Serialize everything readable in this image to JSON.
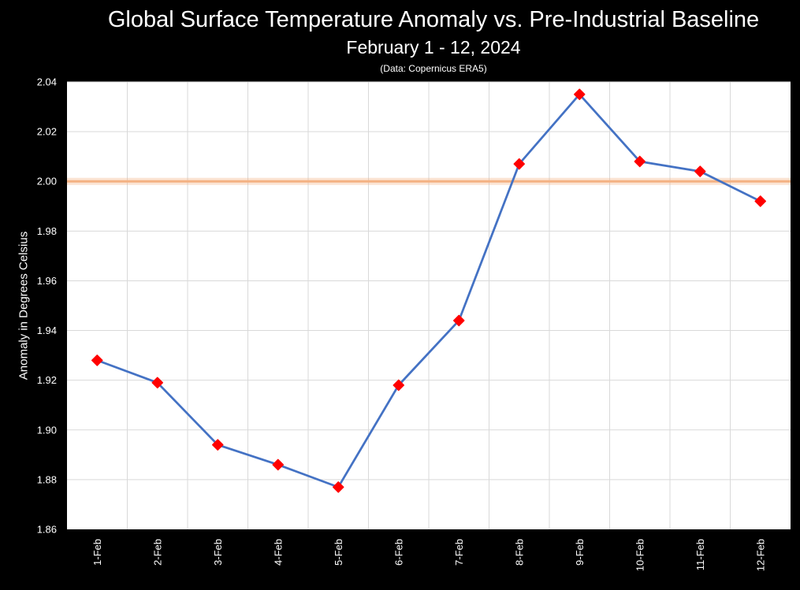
{
  "chart_data": {
    "type": "line",
    "title": "Global Surface Temperature Anomaly vs. Pre-Industrial Baseline",
    "subtitle": "February 1 - 12, 2024",
    "source": "(Data: Copernicus ERA5)",
    "ylabel": "Anomaly in Degrees Celsius",
    "xlabel": "",
    "categories": [
      "1-Feb",
      "2-Feb",
      "3-Feb",
      "4-Feb",
      "5-Feb",
      "6-Feb",
      "7-Feb",
      "8-Feb",
      "9-Feb",
      "10-Feb",
      "11-Feb",
      "12-Feb"
    ],
    "series": [
      {
        "values": [
          1.928,
          1.919,
          1.894,
          1.886,
          1.877,
          1.918,
          1.944,
          2.007,
          2.035,
          2.008,
          2.004,
          1.992
        ],
        "line_color": "#4472c4",
        "marker_color": "#ff0000"
      }
    ],
    "reference_line": {
      "value": 2.0,
      "color": "#f4b183"
    },
    "ylim": [
      1.86,
      2.04
    ],
    "yticks": [
      "1.86",
      "1.88",
      "1.90",
      "1.92",
      "1.94",
      "1.96",
      "1.98",
      "2.00",
      "2.02",
      "2.04"
    ],
    "grid": true,
    "legend": "none"
  }
}
